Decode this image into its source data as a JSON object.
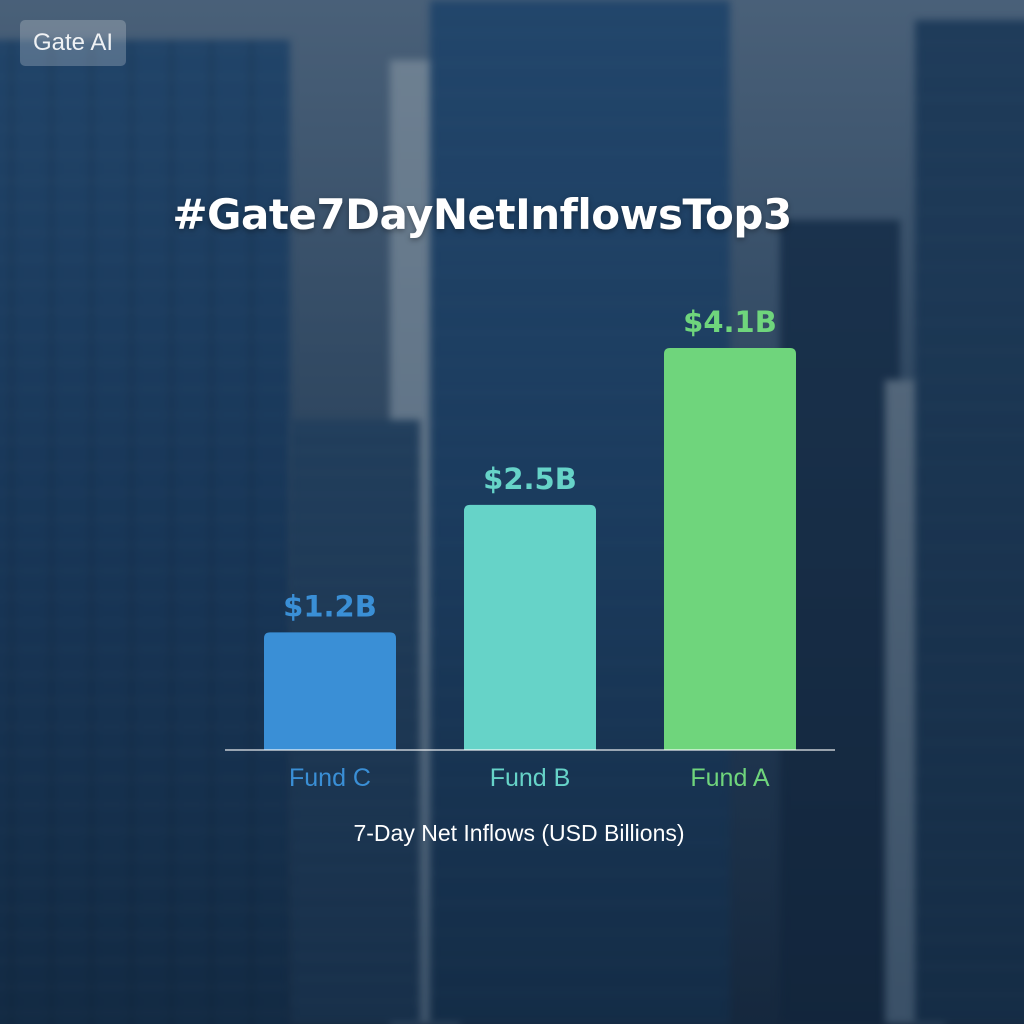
{
  "watermark": "Gate AI",
  "chart_data": {
    "type": "bar",
    "title": "#Gate7DayNetInflowsTop3",
    "xlabel": "7-Day Net Inflows (USD Billions)",
    "ylabel": "",
    "unit": "USD Billions",
    "categories": [
      "Fund C",
      "Fund B",
      "Fund A"
    ],
    "values": [
      1.2,
      2.5,
      4.1
    ],
    "data_labels": [
      "$1.2B",
      "$2.5B",
      "$4.1B"
    ],
    "colors": [
      "#3a8fd6",
      "#66d3c8",
      "#6fd57c"
    ],
    "ylim": [
      0,
      4.1
    ],
    "grid": false,
    "legend": "none"
  }
}
